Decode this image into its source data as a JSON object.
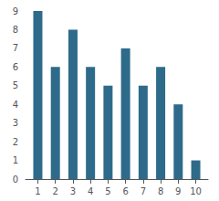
{
  "chart_data": {
    "type": "bar",
    "x": [
      1,
      2,
      3,
      4,
      5,
      6,
      7,
      8,
      9,
      10
    ],
    "values": [
      9,
      6,
      8,
      6,
      5,
      7,
      5,
      6,
      4,
      1
    ],
    "color": "#2e6b8a",
    "xlim": [
      0.3,
      10.7
    ],
    "xticks": [
      1,
      2,
      3,
      4,
      5,
      6,
      7,
      8,
      9,
      10
    ],
    "ylim": [
      0,
      9
    ],
    "yticks": [
      0,
      1,
      2,
      3,
      4,
      5,
      6,
      7,
      8,
      9
    ],
    "grid": false
  }
}
